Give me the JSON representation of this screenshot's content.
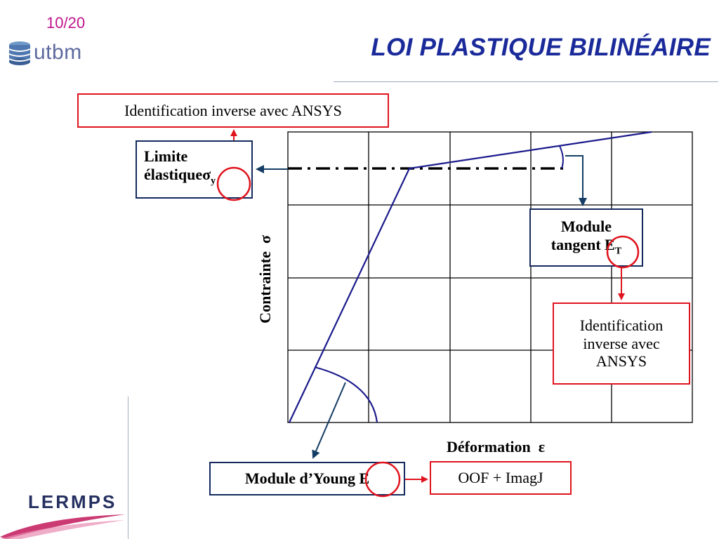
{
  "header": {
    "page_number": "10/20",
    "title": "LOI PLASTIQUE BILINÉAIRE",
    "logo_text": "utbm"
  },
  "footer": {
    "lab_logo_text": "LERMPS"
  },
  "diagram": {
    "axis_y_label": "Contrainte",
    "axis_y_symbol": "σ",
    "axis_x_label": "Déformation",
    "axis_x_symbol": "ε",
    "boxes": {
      "ident_top": "Identification inverse avec ANSYS",
      "limite_line1": "Limite",
      "limite_line2": "élastique",
      "limite_symbol": "σ",
      "limite_sub": "y",
      "module_tangent_line1": "Module",
      "module_tangent_line2": "tangent",
      "module_tangent_symbol": "E",
      "module_tangent_sub": "T",
      "ident_right_line1": "Identification",
      "ident_right_line2": "inverse avec",
      "ident_right_line3": "ANSYS",
      "module_young_label": "Module d’Young",
      "module_young_symbol": "E",
      "oof_label": "OOF + ImagJ"
    },
    "colors": {
      "curve": "#1a1a8c",
      "arrow_navy": "#143c64",
      "highlight_red": "#e0141e",
      "grid": "#000000"
    }
  }
}
